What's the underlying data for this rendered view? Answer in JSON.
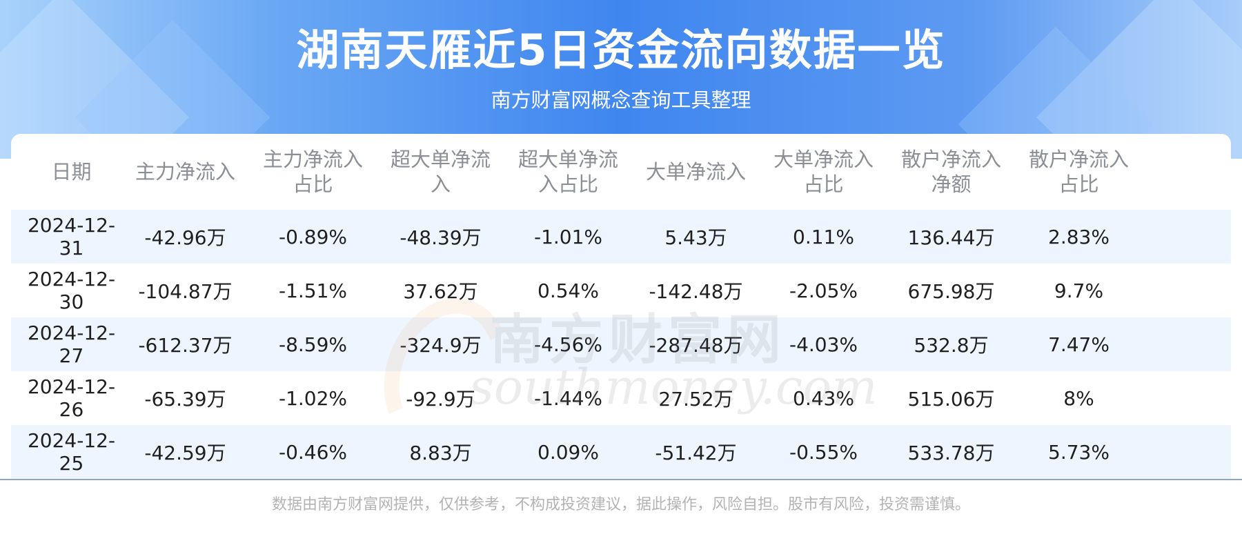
{
  "header": {
    "title": "湖南天雁近5日资金流向数据一览",
    "subtitle": "南方财富网概念查询工具整理"
  },
  "table": {
    "headers": [
      [
        "日期"
      ],
      [
        "主力净流入"
      ],
      [
        "主力净流入",
        "占比"
      ],
      [
        "超大单净流",
        "入"
      ],
      [
        "超大单净流",
        "入占比"
      ],
      [
        "大单净流入"
      ],
      [
        "大单净流入",
        "占比"
      ],
      [
        "散户净流入",
        "净额"
      ],
      [
        "散户净流入",
        "占比"
      ]
    ],
    "rows": [
      [
        "2024-12-31",
        "-42.96万",
        "-0.89%",
        "-48.39万",
        "-1.01%",
        "5.43万",
        "0.11%",
        "136.44万",
        "2.83%"
      ],
      [
        "2024-12-30",
        "-104.87万",
        "-1.51%",
        "37.62万",
        "0.54%",
        "-142.48万",
        "-2.05%",
        "675.98万",
        "9.7%"
      ],
      [
        "2024-12-27",
        "-612.37万",
        "-8.59%",
        "-324.9万",
        "-4.56%",
        "-287.48万",
        "-4.03%",
        "532.8万",
        "7.47%"
      ],
      [
        "2024-12-26",
        "-65.39万",
        "-1.02%",
        "-92.9万",
        "-1.44%",
        "27.52万",
        "0.43%",
        "515.06万",
        "8%"
      ],
      [
        "2024-12-25",
        "-42.59万",
        "-0.46%",
        "8.83万",
        "0.09%",
        "-51.42万",
        "-0.55%",
        "533.78万",
        "5.73%"
      ]
    ]
  },
  "watermark": {
    "cn": "南方财富网",
    "en": "southmoney.com"
  },
  "footer": {
    "disclaimer": "数据由南方财富网提供，仅供参考，不构成投资建议，据此操作，风险自担。股市有风险，投资需谨慎。"
  },
  "colors": {
    "banner_blue": "#3f86ef",
    "row_alt": "#eef5ff",
    "header_text": "#8a8f96"
  }
}
